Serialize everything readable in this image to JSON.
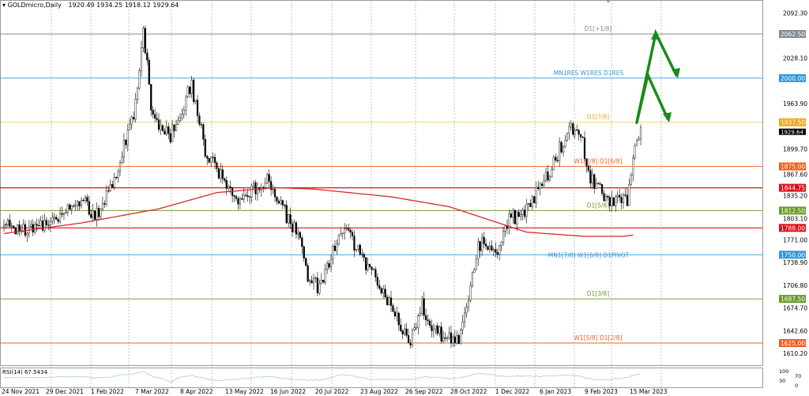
{
  "header": {
    "symbol": "GOLDmicro,Daily",
    "ohlc": "1920.49 1934.25 1918.12 1929.64"
  },
  "rsi": {
    "label": "RSI(14) 67.5434",
    "scale": [
      "100",
      "70",
      "30",
      "0"
    ]
  },
  "chart_data": {
    "type": "candlestick",
    "title": "GOLDmicro,Daily",
    "ylim": [
      1610.2,
      2092.3
    ],
    "y_ticks": [
      "2092.30",
      "2028.10",
      "1963.90",
      "1899.70",
      "1867.60",
      "1835.20",
      "1803.10",
      "1771.00",
      "1738.90",
      "1706.80",
      "1674.70",
      "1642.60",
      "1610.20"
    ],
    "x_ticks": [
      "24 Nov 2021",
      "29 Dec 2021",
      "1 Feb 2022",
      "7 Mar 2022",
      "8 Apr 2022",
      "13 May 2022",
      "16 Jun 2022",
      "20 Jul 2022",
      "23 Aug 2022",
      "26 Sep 2022",
      "28 Oct 2022",
      "1 Dec 2022",
      "6 Jan 2023",
      "9 Feb 2023",
      "15 Mar 2023"
    ],
    "current_price": {
      "value": 1929.64,
      "label": "1929.64"
    },
    "price_path": [
      [
        0,
        1790
      ],
      [
        16,
        1785
      ],
      [
        24,
        1800
      ],
      [
        41,
        1830
      ],
      [
        47,
        1800
      ],
      [
        57,
        1860
      ],
      [
        67,
        1950
      ],
      [
        72,
        2065
      ],
      [
        77,
        1940
      ],
      [
        86,
        1920
      ],
      [
        97,
        1990
      ],
      [
        104,
        1900
      ],
      [
        116,
        1840
      ],
      [
        120,
        1820
      ],
      [
        137,
        1860
      ],
      [
        141,
        1830
      ],
      [
        153,
        1770
      ],
      [
        157,
        1720
      ],
      [
        163,
        1700
      ],
      [
        175,
        1790
      ],
      [
        184,
        1750
      ],
      [
        196,
        1700
      ],
      [
        210,
        1625
      ],
      [
        216,
        1680
      ],
      [
        222,
        1640
      ],
      [
        235,
        1630
      ],
      [
        237,
        1650
      ],
      [
        245,
        1765
      ],
      [
        255,
        1760
      ],
      [
        261,
        1800
      ],
      [
        269,
        1810
      ],
      [
        282,
        1870
      ],
      [
        292,
        1930
      ],
      [
        298,
        1920
      ],
      [
        302,
        1860
      ],
      [
        314,
        1820
      ],
      [
        322,
        1830
      ],
      [
        324,
        1870
      ],
      [
        329,
        1930
      ]
    ],
    "ma_path": [
      [
        0,
        1780
      ],
      [
        40,
        1795
      ],
      [
        80,
        1815
      ],
      [
        110,
        1838
      ],
      [
        140,
        1845
      ],
      [
        160,
        1843
      ],
      [
        200,
        1832
      ],
      [
        230,
        1818
      ],
      [
        250,
        1800
      ],
      [
        270,
        1782
      ],
      [
        300,
        1776
      ],
      [
        320,
        1776
      ],
      [
        325,
        1778
      ]
    ],
    "levels": [
      {
        "value": 2062.5,
        "price_label": "2062.50",
        "text": "D1[+1/8]",
        "color": "#7f8c93"
      },
      {
        "value": 2000.0,
        "price_label": "2000.00",
        "text": "MN1RES W1RES D1RES",
        "color": "#2f95dc"
      },
      {
        "value": 1937.5,
        "price_label": "1937.50",
        "text": "D1[7/8]",
        "color": "#f0a818"
      },
      {
        "value": 1875.0,
        "price_label": "1875.00",
        "text": "W1[7/8] D1[6/8]",
        "color": "#f06020"
      },
      {
        "value": 1844.75,
        "price_label": "1844.75",
        "text": "",
        "color": "#e0101a"
      },
      {
        "value": 1812.5,
        "price_label": "1812.50",
        "text": "D1[5/8]",
        "color": "#6b9a2a"
      },
      {
        "value": 1788.0,
        "price_label": "1788.00",
        "text": "",
        "color": "#e0101a"
      },
      {
        "value": 1750.0,
        "price_label": "1750.00",
        "text": "MN1[7/8] W1[6/8] D1PIVOT",
        "color": "#2f95dc"
      },
      {
        "value": 1687.5,
        "price_label": "1687.50",
        "text": "D1[3/8]",
        "color": "#6b9a2a"
      },
      {
        "value": 1625.0,
        "price_label": "1625.00",
        "text": "W1[5/8] D1[2/8]",
        "color": "#f06020"
      }
    ],
    "colors": {
      "ma": "#d42a2a",
      "arrow": "#1b8a1b",
      "rsi": "#9ec3d6"
    }
  }
}
